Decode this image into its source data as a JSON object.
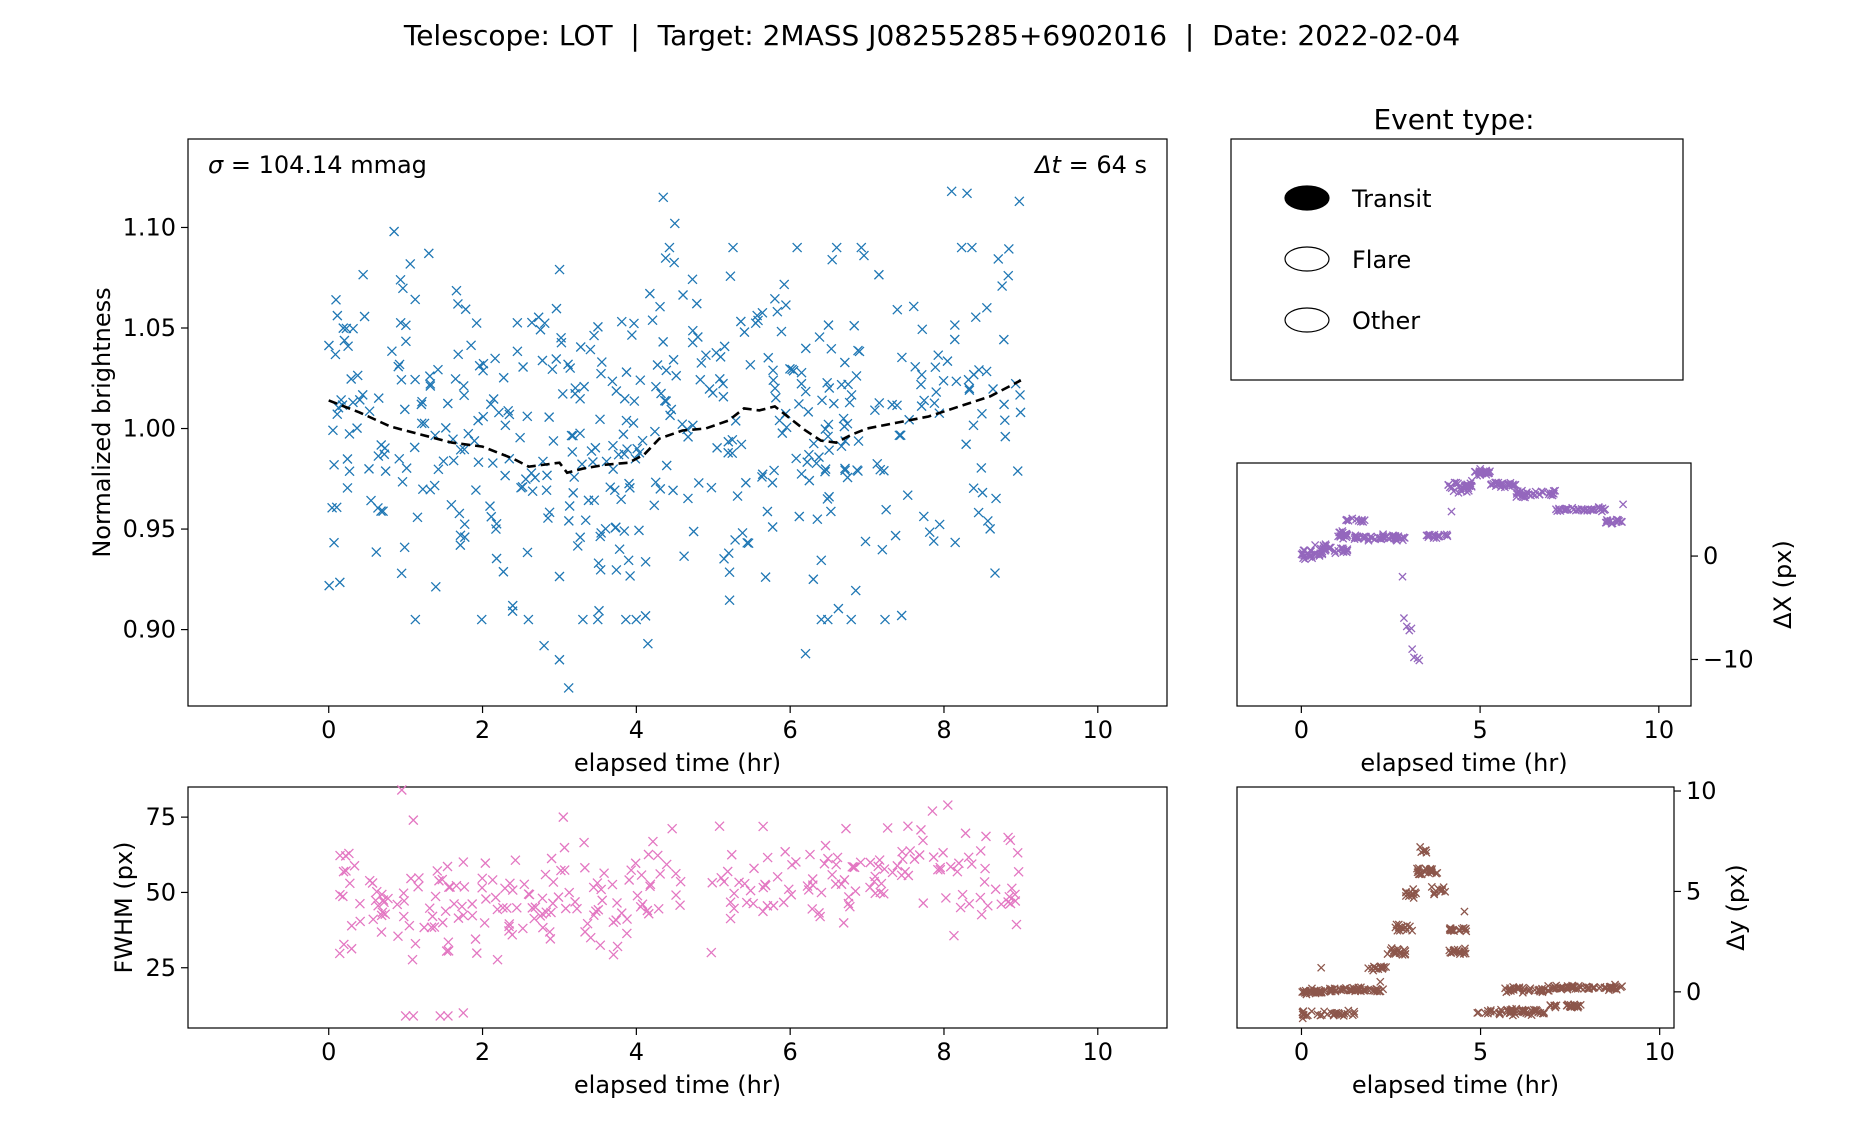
{
  "figure_title": "Telescope: LOT  |  Target: 2MASS J08255285+6902016  |  Date: 2022-02-04",
  "colors": {
    "flux": "#1f77b4",
    "fwhm": "#e377c2",
    "dx": "#9467bd",
    "dy": "#8c564b",
    "trend": "#000000"
  },
  "legend": {
    "title": "Event type:",
    "items": [
      {
        "label": "Transit",
        "selected": true
      },
      {
        "label": "Flare",
        "selected": false
      },
      {
        "label": "Other",
        "selected": false
      }
    ]
  },
  "chart_data": [
    {
      "id": "flux",
      "type": "scatter",
      "xlabel": "elapsed time (hr)",
      "ylabel": "Normalized brightness",
      "xlim": [
        -1.83,
        10.9
      ],
      "ylim": [
        0.862,
        1.144
      ],
      "xticks": [
        0,
        2,
        4,
        6,
        8,
        10
      ],
      "yticks": [
        0.9,
        0.95,
        1.0,
        1.05,
        1.1
      ],
      "ytick_labels": [
        "0.90",
        "0.95",
        "1.00",
        "1.05",
        "1.10"
      ],
      "annotation_left": {
        "prefix": "σ",
        "suffix": " = 104.14 mmag"
      },
      "annotation_right": {
        "prefix": "Δt",
        "suffix": " = 64 s"
      },
      "x_range": [
        0.0,
        9.0
      ],
      "n_points": 480,
      "scatter_sigma": 0.047,
      "outliers": [
        [
          0.85,
          1.098
        ],
        [
          4.35,
          1.115
        ],
        [
          4.5,
          1.102
        ],
        [
          8.1,
          1.118
        ],
        [
          8.3,
          1.117
        ],
        [
          8.98,
          1.113
        ],
        [
          3.12,
          0.871
        ],
        [
          3.0,
          0.885
        ],
        [
          2.8,
          0.892
        ],
        [
          4.15,
          0.893
        ],
        [
          6.2,
          0.888
        ],
        [
          7.45,
          0.907
        ]
      ],
      "trend": {
        "style": "dashed",
        "x": [
          0.0,
          0.4,
          0.8,
          1.2,
          1.6,
          2.0,
          2.4,
          2.6,
          3.0,
          3.1,
          3.3,
          3.6,
          3.9,
          4.1,
          4.3,
          4.6,
          4.9,
          5.2,
          5.4,
          5.6,
          5.8,
          6.0,
          6.2,
          6.4,
          6.6,
          6.8,
          7.0,
          7.4,
          7.8,
          8.2,
          8.6,
          9.0
        ],
        "y": [
          1.014,
          1.008,
          1.001,
          0.997,
          0.993,
          0.991,
          0.985,
          0.981,
          0.983,
          0.978,
          0.98,
          0.982,
          0.983,
          0.987,
          0.995,
          0.999,
          1.0,
          1.004,
          1.01,
          1.009,
          1.011,
          1.005,
          0.999,
          0.994,
          0.993,
          0.997,
          1.0,
          1.003,
          1.006,
          1.011,
          1.016,
          1.024
        ]
      }
    },
    {
      "id": "fwhm",
      "type": "scatter",
      "xlabel": "elapsed time (hr)",
      "ylabel": "FWHM (px)",
      "xlim": [
        -1.83,
        10.9
      ],
      "ylim": [
        5,
        85
      ],
      "xticks": [
        0,
        2,
        4,
        6,
        8,
        10
      ],
      "yticks": [
        25,
        50,
        75
      ],
      "x_range": [
        0.1,
        9.0
      ],
      "n_points": 300,
      "trend": {
        "x": [
          0.1,
          2.0,
          3.5,
          5.0,
          7.0,
          8.0,
          9.0
        ],
        "y": [
          46,
          47,
          44,
          53,
          55,
          60,
          52
        ]
      },
      "scatter_sigma": 8.0,
      "outliers": [
        [
          1.0,
          9
        ],
        [
          1.1,
          9
        ],
        [
          1.45,
          9
        ],
        [
          1.55,
          9
        ],
        [
          1.75,
          10
        ],
        [
          0.95,
          84
        ],
        [
          1.1,
          74
        ],
        [
          3.05,
          75
        ],
        [
          8.05,
          79
        ],
        [
          7.85,
          77
        ]
      ]
    },
    {
      "id": "dx",
      "type": "scatter",
      "xlabel": "elapsed time (hr)",
      "ylabel": "ΔX (px)",
      "y_axis_side": "right",
      "xlim": [
        -1.8,
        10.9
      ],
      "ylim": [
        -14.5,
        9
      ],
      "xticks": [
        0,
        5,
        10
      ],
      "yticks": [
        -10,
        0
      ],
      "ytick_labels": [
        "−10",
        "0"
      ],
      "segments": [
        {
          "x0": 0.0,
          "x1": 0.6,
          "y": 0.3,
          "n": 26,
          "jitter": 0.6
        },
        {
          "x0": 0.6,
          "x1": 1.3,
          "y": 0.7,
          "n": 26,
          "jitter": 0.4
        },
        {
          "x0": 1.0,
          "x1": 1.6,
          "y": 2.0,
          "n": 20,
          "jitter": 0.4
        },
        {
          "x0": 1.2,
          "x1": 1.8,
          "y": 3.5,
          "n": 12,
          "jitter": 0.3
        },
        {
          "x0": 1.5,
          "x1": 2.9,
          "y": 1.8,
          "n": 48,
          "jitter": 0.3
        },
        {
          "x0": 3.5,
          "x1": 4.1,
          "y": 2.0,
          "n": 18,
          "jitter": 0.3
        },
        {
          "x0": 4.1,
          "x1": 4.8,
          "y": 6.7,
          "n": 32,
          "jitter": 0.5
        },
        {
          "x0": 4.8,
          "x1": 5.3,
          "y": 8.0,
          "n": 22,
          "jitter": 0.4
        },
        {
          "x0": 5.3,
          "x1": 6.0,
          "y": 6.9,
          "n": 26,
          "jitter": 0.3
        },
        {
          "x0": 6.0,
          "x1": 7.1,
          "y": 6.0,
          "n": 34,
          "jitter": 0.3
        },
        {
          "x0": 7.1,
          "x1": 8.5,
          "y": 4.5,
          "n": 40,
          "jitter": 0.2
        },
        {
          "x0": 8.5,
          "x1": 9.0,
          "y": 3.3,
          "n": 16,
          "jitter": 0.3
        }
      ],
      "extra_points": [
        [
          2.83,
          -2.0
        ],
        [
          2.87,
          -6.0
        ],
        [
          2.95,
          -6.8
        ],
        [
          3.02,
          -7.2
        ],
        [
          3.08,
          -7.0
        ],
        [
          3.1,
          -9.0
        ],
        [
          3.15,
          -9.8
        ],
        [
          3.25,
          -9.9
        ],
        [
          3.3,
          -10.1
        ],
        [
          4.2,
          4.3
        ],
        [
          9.0,
          5.0
        ],
        [
          0.1,
          -0.3
        ],
        [
          0.3,
          -0.2
        ]
      ]
    },
    {
      "id": "dy",
      "type": "scatter",
      "xlabel": "elapsed time (hr)",
      "ylabel": "Δy (px)",
      "y_axis_side": "right",
      "xlim": [
        -1.8,
        10.4
      ],
      "ylim": [
        -1.8,
        10.2
      ],
      "xticks": [
        0,
        5,
        10
      ],
      "yticks": [
        0,
        5,
        10
      ],
      "segments": [
        {
          "x0": 0.0,
          "x1": 0.7,
          "y": 0.0,
          "n": 30,
          "jitter": 0.12
        },
        {
          "x0": 0.0,
          "x1": 1.5,
          "y": -1.1,
          "n": 30,
          "jitter": 0.15
        },
        {
          "x0": 0.7,
          "x1": 2.3,
          "y": 0.1,
          "n": 50,
          "jitter": 0.12
        },
        {
          "x0": 1.8,
          "x1": 2.4,
          "y": 1.2,
          "n": 14,
          "jitter": 0.2
        },
        {
          "x0": 2.4,
          "x1": 2.9,
          "y": 2.0,
          "n": 18,
          "jitter": 0.2
        },
        {
          "x0": 2.6,
          "x1": 3.2,
          "y": 3.2,
          "n": 14,
          "jitter": 0.2
        },
        {
          "x0": 2.9,
          "x1": 3.2,
          "y": 4.9,
          "n": 12,
          "jitter": 0.3
        },
        {
          "x0": 3.2,
          "x1": 3.9,
          "y": 6.0,
          "n": 24,
          "jitter": 0.2
        },
        {
          "x0": 3.3,
          "x1": 3.5,
          "y": 7.0,
          "n": 6,
          "jitter": 0.2
        },
        {
          "x0": 3.6,
          "x1": 4.1,
          "y": 5.0,
          "n": 12,
          "jitter": 0.2
        },
        {
          "x0": 4.1,
          "x1": 4.6,
          "y": 3.1,
          "n": 18,
          "jitter": 0.15
        },
        {
          "x0": 4.1,
          "x1": 4.6,
          "y": 2.0,
          "n": 16,
          "jitter": 0.15
        },
        {
          "x0": 4.9,
          "x1": 6.8,
          "y": -1.0,
          "n": 56,
          "jitter": 0.15
        },
        {
          "x0": 5.6,
          "x1": 7.0,
          "y": 0.1,
          "n": 36,
          "jitter": 0.15
        },
        {
          "x0": 6.9,
          "x1": 7.8,
          "y": -0.7,
          "n": 24,
          "jitter": 0.12
        },
        {
          "x0": 7.0,
          "x1": 9.0,
          "y": 0.2,
          "n": 56,
          "jitter": 0.12
        }
      ],
      "extra_points": [
        [
          0.55,
          1.2
        ],
        [
          4.55,
          4.0
        ],
        [
          2.2,
          0.5
        ]
      ]
    }
  ]
}
